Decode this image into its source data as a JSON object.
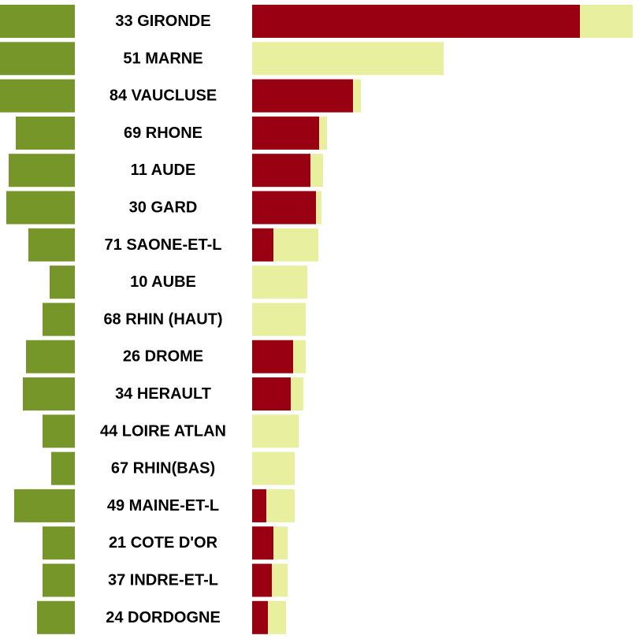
{
  "chart_data": {
    "type": "bar",
    "colors": {
      "left": "#76962a",
      "red": "#990012",
      "light": "#e8f0a0"
    },
    "categories": [
      "33 GIRONDE",
      "51 MARNE",
      "84 VAUCLUSE",
      "69 RHONE",
      "11 AUDE",
      "30 GARD",
      "71 SAONE-ET-L",
      "10 AUBE",
      "68 RHIN (HAUT)",
      "26 DROME",
      "34 HERAULT",
      "44 LOIRE ATLAN",
      "67 RHIN(BAS)",
      "49 MAINE-ET-L",
      "21 COTE D'OR",
      "37 INDRE-ET-L",
      "24 DORDOGNE"
    ],
    "series": [
      {
        "values": [
          95,
          95,
          95,
          75,
          84,
          87,
          59,
          32,
          41,
          62,
          66,
          41,
          30,
          77,
          41,
          41,
          48
        ]
      },
      {
        "values": [
          416,
          0,
          128,
          85,
          74,
          81,
          27,
          0,
          0,
          52,
          49,
          0,
          0,
          18,
          27,
          25,
          20
        ]
      },
      {
        "values": [
          483,
          243,
          138,
          95,
          90,
          88,
          84,
          70,
          68,
          68,
          65,
          59,
          54,
          54,
          45,
          45,
          43
        ]
      }
    ]
  }
}
